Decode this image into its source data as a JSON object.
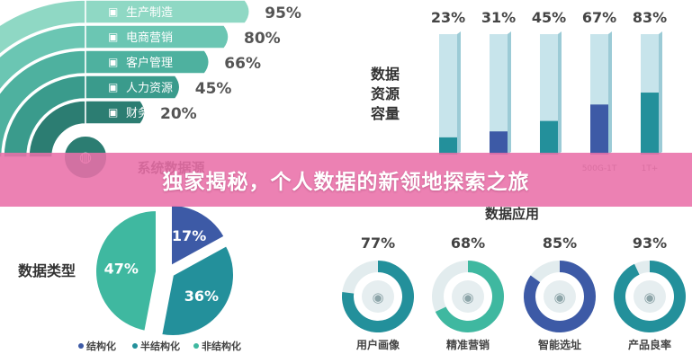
{
  "banner": {
    "title": "独家揭秘，个人数据的新领地探索之旅"
  },
  "colors": {
    "teal": "#23909b",
    "teal_light": "#3fb8a0",
    "navy": "#3d5aa6",
    "pink_banner": "#e970a8",
    "arc_shades": [
      "#8fd8c4",
      "#6bc6b3",
      "#4eb19f",
      "#3a9b8c",
      "#2c7d72"
    ]
  },
  "chart_data": [
    {
      "type": "bar",
      "title": "系统数据源",
      "categories": [
        "生产制造",
        "电商营销",
        "客户管理",
        "人力资源",
        "财务"
      ],
      "series": [
        {
          "values": [
            95,
            80,
            66,
            45,
            20
          ]
        }
      ],
      "value_labels": [
        "95%",
        "80%",
        "66%",
        "45%",
        "20%"
      ],
      "icons": [
        "factory-icon",
        "email-icon",
        "customer-icon",
        "hr-icon",
        "finance-icon"
      ]
    },
    {
      "type": "bar",
      "ylabel": "数据\n资源\n容量",
      "categories": [
        "",
        "",
        "",
        "500G-1T",
        "1T+"
      ],
      "values": [
        23,
        31,
        45,
        67,
        83
      ],
      "value_labels": [
        "23%",
        "31%",
        "45%",
        "67%",
        "83%"
      ],
      "ylim": [
        0,
        100
      ],
      "bar_colors": [
        "#23909b",
        "#3d5aa6",
        "#23909b",
        "#3d5aa6",
        "#23909b"
      ]
    },
    {
      "type": "pie",
      "title": "数据类型",
      "labels": [
        "结构化",
        "半结构化",
        "非结构化"
      ],
      "values": [
        17,
        36,
        47
      ],
      "value_labels": [
        "17%",
        "36%",
        "47%"
      ],
      "colors": [
        "#3d5aa6",
        "#23909b",
        "#3fb8a0"
      ],
      "legend": "bottom"
    },
    {
      "type": "pie",
      "title": "数据应用",
      "labels": [
        "用户画像",
        "精准营销",
        "智能选址",
        "产品良率"
      ],
      "values": [
        77,
        68,
        85,
        93
      ],
      "value_labels": [
        "77%",
        "68%",
        "85%",
        "93%"
      ],
      "colors": [
        "#23909b",
        "#3fb8a0",
        "#3d5aa6",
        "#23909b"
      ],
      "icons": [
        "user-portrait-icon",
        "marketing-icon",
        "location-icon",
        "yield-chart-icon"
      ]
    }
  ]
}
